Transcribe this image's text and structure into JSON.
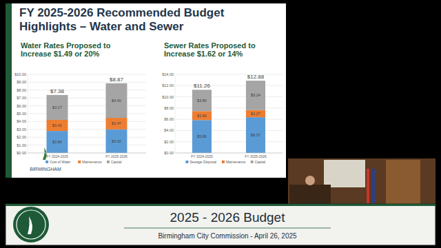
{
  "slide": {
    "title": "FY 2025-2026 Recommended Budget Highlights – Water and Sewer",
    "logo_text": "BIRMINGHAM"
  },
  "banner": {
    "title": "2025 - 2026 Budget",
    "subtitle": "Birmingham City Commission - April 26, 2025"
  },
  "chart_data": [
    {
      "type": "bar",
      "stacked": true,
      "data_labels": true,
      "title": "Water Rates Proposed to Increase $1.49 or 20%",
      "categories": [
        "FY 2024-2025",
        "FY 2025-2026"
      ],
      "series": [
        {
          "name": "Cost of Water",
          "color": "#5b9bd5",
          "values": [
            2.8,
            3.0
          ],
          "value_labels": [
            "$2.80",
            "$3.00"
          ]
        },
        {
          "name": "Maintenance",
          "color": "#ed7d31",
          "values": [
            1.41,
            1.47
          ],
          "value_labels": [
            "$1.41",
            "$1.47"
          ]
        },
        {
          "name": "Capital",
          "color": "#a5a5a5",
          "values": [
            3.17,
            4.4
          ],
          "value_labels": [
            "$3.17",
            "$4.40"
          ]
        }
      ],
      "totals": [
        7.38,
        8.87
      ],
      "total_labels": [
        "$7.38",
        "$8.87"
      ],
      "ylim": [
        0,
        10
      ],
      "yticks": [
        {
          "value": 0,
          "label": "$0.00"
        },
        {
          "value": 1,
          "label": "$1.00"
        },
        {
          "value": 2,
          "label": "$2.00"
        },
        {
          "value": 3,
          "label": "$3.00"
        },
        {
          "value": 4,
          "label": "$4.00"
        },
        {
          "value": 5,
          "label": "$5.00"
        },
        {
          "value": 6,
          "label": "$6.00"
        },
        {
          "value": 7,
          "label": "$7.00"
        },
        {
          "value": 8,
          "label": "$8.00"
        },
        {
          "value": 9,
          "label": "$9.00"
        },
        {
          "value": 10,
          "label": "$10.00"
        }
      ],
      "legend": "bottom"
    },
    {
      "type": "bar",
      "stacked": true,
      "data_labels": true,
      "title": "Sewer Rates Proposed to Increase $1.62 or 14%",
      "categories": [
        "FY 2024-2025",
        "FY 2025-2026"
      ],
      "series": [
        {
          "name": "Sewage Disposal",
          "color": "#5b9bd5",
          "values": [
            5.86,
            6.37
          ],
          "value_labels": [
            "$5.86",
            "$6.37"
          ]
        },
        {
          "name": "Maintenance",
          "color": "#ed7d31",
          "values": [
            1.6,
            1.27
          ],
          "value_labels": [
            "$1.60",
            "$1.27"
          ]
        },
        {
          "name": "Capital",
          "color": "#a5a5a5",
          "values": [
            3.8,
            5.24
          ],
          "value_labels": [
            "$3.80",
            "$5.24"
          ]
        }
      ],
      "totals": [
        11.26,
        12.88
      ],
      "total_labels": [
        "$11.26",
        "$12.88"
      ],
      "ylim": [
        0,
        14
      ],
      "yticks": [
        {
          "value": 0,
          "label": "$0.00"
        },
        {
          "value": 2,
          "label": "$2.00"
        },
        {
          "value": 4,
          "label": "$4.00"
        },
        {
          "value": 6,
          "label": "$6.00"
        },
        {
          "value": 8,
          "label": "$8.00"
        },
        {
          "value": 10,
          "label": "$10.00"
        },
        {
          "value": 12,
          "label": "$12.00"
        },
        {
          "value": 14,
          "label": "$14.00"
        }
      ],
      "legend": "bottom"
    }
  ]
}
